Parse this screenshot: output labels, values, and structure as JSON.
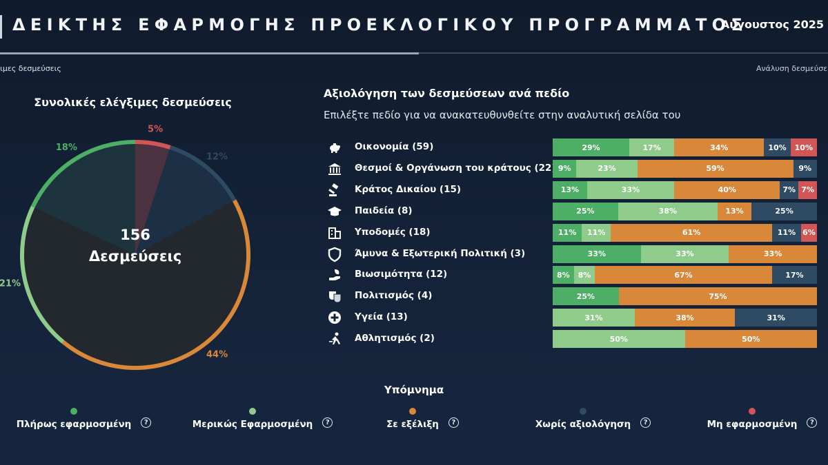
{
  "header": {
    "title": "ΔΕΙΚΤΗΣ ΕΦΑΡΜΟΓΗΣ ΠΡΟΕΚΛΟΓΙΚΟΥ ΠΡΟΓΡΑΜΜΑΤΟΣ",
    "date": "Αύγουστος 2025",
    "tab_left": "ξιμες δεσμεύσεις",
    "tab_right": "Ανάλυση δεσμεύσε"
  },
  "colors": {
    "full": "#4caf65",
    "partial": "#8fcc8b",
    "progress": "#d9883a",
    "none": "#2f4a63",
    "notimpl": "#d35555",
    "pie_center": "#23272e",
    "pie_back": "#17243a"
  },
  "pie_section": {
    "title": "Συνολικές ελέγξιμες δεσμεύσεις",
    "center_number": "156",
    "center_label": "Δεσμεύσεις"
  },
  "bars_section": {
    "title": "Αξιολόγηση των δεσμεύσεων ανά πεδίο",
    "subtitle": "Επιλέξτε πεδίο για να ανακατευθυνθείτε στην αναλυτική σελίδα του"
  },
  "legend": {
    "title": "Υπόμνημα",
    "items": [
      {
        "key": "full",
        "label": "Πλήρως εφαρμοσμένη"
      },
      {
        "key": "partial",
        "label": "Μερικώς Εφαρμοσμένη"
      },
      {
        "key": "progress",
        "label": "Σε εξέλιξη"
      },
      {
        "key": "none",
        "label": "Χωρίς αξιολόγηση"
      },
      {
        "key": "notimpl",
        "label": "Μη εφαρμοσμένη"
      }
    ]
  },
  "chart_data": [
    {
      "type": "pie",
      "title": "Συνολικές ελέγξιμες δεσμεύσεις",
      "slices": [
        {
          "key": "notimpl",
          "value": 5,
          "label": "5%"
        },
        {
          "key": "none",
          "value": 12,
          "label": "12%"
        },
        {
          "key": "progress",
          "value": 44,
          "label": "44%"
        },
        {
          "key": "partial",
          "value": 21,
          "label": "21%"
        },
        {
          "key": "full",
          "value": 18,
          "label": "18%"
        }
      ]
    },
    {
      "type": "bar",
      "stacked": true,
      "orientation": "horizontal",
      "title": "Αξιολόγηση των δεσμεύσεων ανά πεδίο",
      "series_keys": [
        "full",
        "partial",
        "progress",
        "none",
        "notimpl"
      ],
      "rows": [
        {
          "icon": "piggy-bank-icon",
          "label": "Οικονομία (59)",
          "values": [
            29,
            17,
            34,
            10,
            10
          ]
        },
        {
          "icon": "institution-icon",
          "label": "Θεσμοί & Οργάνωση του κράτους (22)",
          "values": [
            9,
            23,
            59,
            9,
            0
          ]
        },
        {
          "icon": "gavel-icon",
          "label": "Κράτος Δικαίου (15)",
          "values": [
            13,
            33,
            40,
            7,
            7
          ]
        },
        {
          "icon": "graduation-cap-icon",
          "label": "Παιδεία (8)",
          "values": [
            25,
            38,
            13,
            25,
            0
          ]
        },
        {
          "icon": "building-icon",
          "label": "Υποδομές (18)",
          "values": [
            11,
            11,
            61,
            11,
            6
          ]
        },
        {
          "icon": "shield-icon",
          "label": "Άμυνα & Εξωτερική Πολιτική (3)",
          "values": [
            33,
            33,
            33,
            0,
            0
          ]
        },
        {
          "icon": "eco-hand-icon",
          "label": "Βιωσιμότητα (12)",
          "values": [
            8,
            8,
            67,
            17,
            0
          ]
        },
        {
          "icon": "theater-masks-icon",
          "label": "Πολιτισμός (4)",
          "values": [
            25,
            0,
            75,
            0,
            0
          ]
        },
        {
          "icon": "plus-circle-icon",
          "label": "Υγεία (13)",
          "values": [
            0,
            31,
            38,
            31,
            0
          ]
        },
        {
          "icon": "runner-icon",
          "label": "Αθλητισμός (2)",
          "values": [
            0,
            50,
            50,
            0,
            0
          ]
        }
      ]
    }
  ]
}
